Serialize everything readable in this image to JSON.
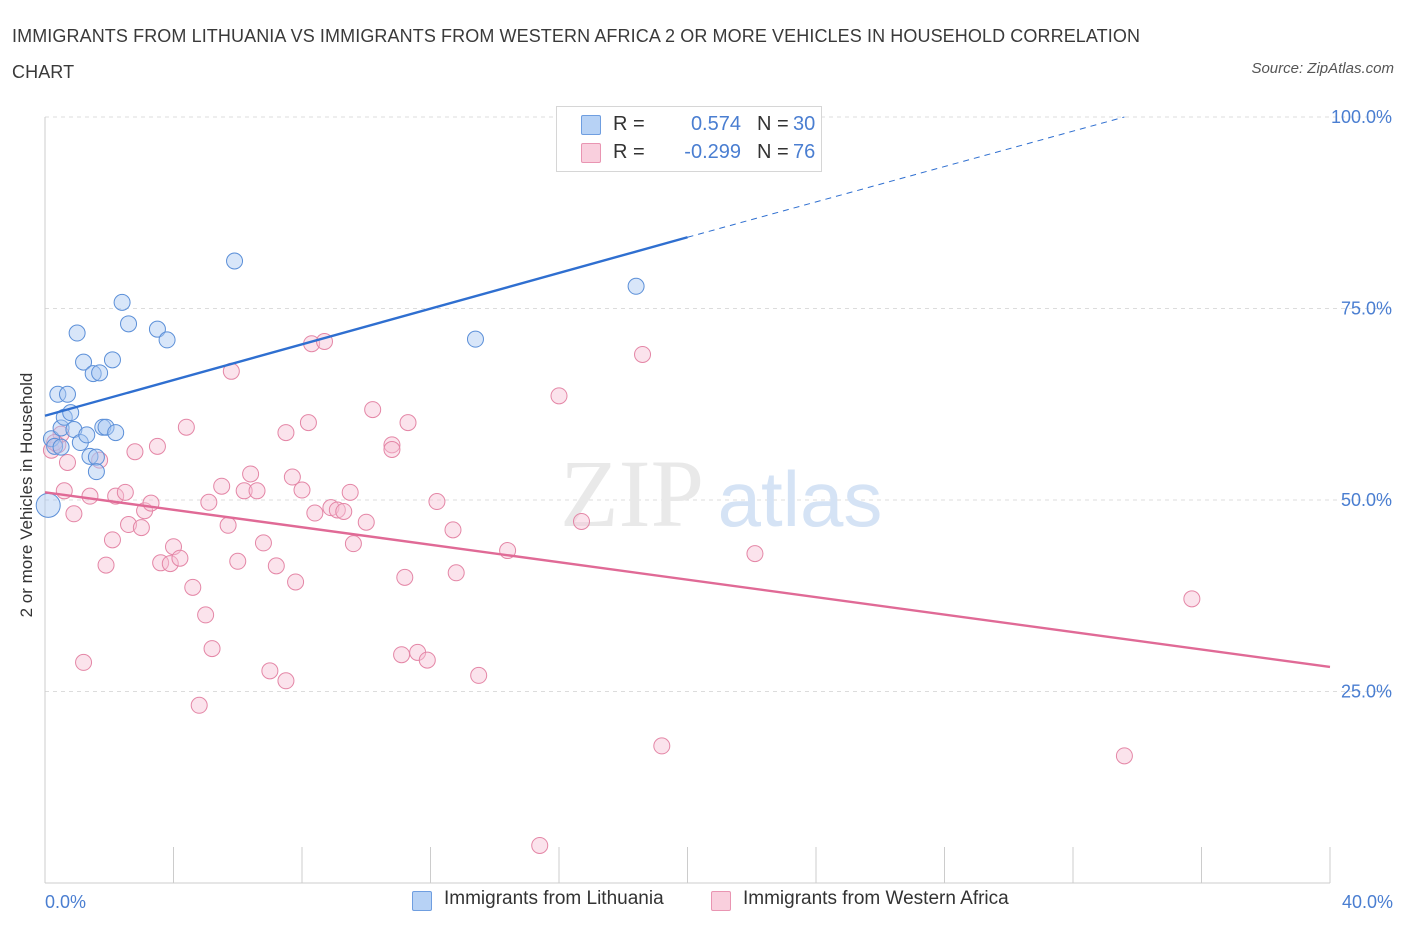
{
  "header": {
    "title": "IMMIGRANTS FROM LITHUANIA VS IMMIGRANTS FROM WESTERN AFRICA 2 OR MORE VEHICLES IN HOUSEHOLD CORRELATION CHART",
    "source": "Source: ZipAtlas.com"
  },
  "watermark": {
    "zip": "ZIP",
    "atlas": "atlas"
  },
  "stats_legend": {
    "rows": [
      {
        "r_label": "R =",
        "r_value": "0.574",
        "n_label": "N =",
        "n_value": "30"
      },
      {
        "r_label": "R =",
        "r_value": "-0.299",
        "n_label": "N =",
        "n_value": "76"
      }
    ]
  },
  "chart_data": {
    "type": "scatter",
    "title": "IMMIGRANTS FROM LITHUANIA VS IMMIGRANTS FROM WESTERN AFRICA 2 OR MORE VEHICLES IN HOUSEHOLD CORRELATION CHART",
    "xlabel": "",
    "ylabel": "2 or more Vehicles in Household",
    "xlim": [
      0,
      40
    ],
    "ylim": [
      0,
      100
    ],
    "x_tick_labels": [
      "0.0%",
      "40.0%"
    ],
    "y_tick_labels": [
      "100.0%",
      "75.0%",
      "50.0%",
      "25.0%"
    ],
    "y_ticks": [
      100,
      75,
      50,
      25
    ],
    "grid": true,
    "legend_position": "bottom-center",
    "series": [
      {
        "name": "Immigrants from Lithuania",
        "color": "#a9c8f2",
        "stroke": "#5b8fd8",
        "trend": {
          "x": [
            0,
            20,
            33.6
          ],
          "y": [
            61,
            84.3,
            100
          ],
          "solid_until": 20,
          "color": "#2f6fd0"
        },
        "points": [
          {
            "x": 0.1,
            "y": 49.3,
            "big": true
          },
          {
            "x": 0.2,
            "y": 58.0
          },
          {
            "x": 0.3,
            "y": 57.0
          },
          {
            "x": 0.4,
            "y": 63.8
          },
          {
            "x": 0.5,
            "y": 59.4
          },
          {
            "x": 0.6,
            "y": 60.8
          },
          {
            "x": 0.7,
            "y": 63.8
          },
          {
            "x": 0.8,
            "y": 61.4
          },
          {
            "x": 0.9,
            "y": 59.2
          },
          {
            "x": 1.0,
            "y": 71.8
          },
          {
            "x": 1.1,
            "y": 57.5
          },
          {
            "x": 1.2,
            "y": 68.0
          },
          {
            "x": 1.3,
            "y": 58.5
          },
          {
            "x": 1.4,
            "y": 55.7
          },
          {
            "x": 1.5,
            "y": 66.5
          },
          {
            "x": 1.6,
            "y": 55.6
          },
          {
            "x": 1.7,
            "y": 66.6
          },
          {
            "x": 1.6,
            "y": 53.7
          },
          {
            "x": 1.8,
            "y": 59.5
          },
          {
            "x": 1.9,
            "y": 59.5
          },
          {
            "x": 2.1,
            "y": 68.3
          },
          {
            "x": 2.2,
            "y": 58.8
          },
          {
            "x": 2.4,
            "y": 75.8
          },
          {
            "x": 2.6,
            "y": 73.0
          },
          {
            "x": 3.5,
            "y": 72.3
          },
          {
            "x": 3.8,
            "y": 70.9
          },
          {
            "x": 5.9,
            "y": 81.2
          },
          {
            "x": 13.4,
            "y": 71.0
          },
          {
            "x": 18.4,
            "y": 77.9
          },
          {
            "x": 0.5,
            "y": 56.9
          }
        ]
      },
      {
        "name": "Immigrants from Western Africa",
        "color": "#f7c2d4",
        "stroke": "#e486a6",
        "trend": {
          "x": [
            0,
            40
          ],
          "y": [
            51,
            28.2
          ],
          "color": "#e06a96"
        },
        "points": [
          {
            "x": 0.2,
            "y": 56.5
          },
          {
            "x": 0.4,
            "y": 57.2
          },
          {
            "x": 0.5,
            "y": 58.6
          },
          {
            "x": 0.6,
            "y": 51.2
          },
          {
            "x": 0.7,
            "y": 54.9
          },
          {
            "x": 0.9,
            "y": 48.2
          },
          {
            "x": 1.2,
            "y": 28.8
          },
          {
            "x": 1.4,
            "y": 50.5
          },
          {
            "x": 1.7,
            "y": 55.2
          },
          {
            "x": 1.9,
            "y": 41.5
          },
          {
            "x": 2.1,
            "y": 44.8
          },
          {
            "x": 2.2,
            "y": 50.5
          },
          {
            "x": 2.5,
            "y": 51.0
          },
          {
            "x": 2.6,
            "y": 46.8
          },
          {
            "x": 2.8,
            "y": 56.3
          },
          {
            "x": 3.0,
            "y": 46.4
          },
          {
            "x": 3.1,
            "y": 48.6
          },
          {
            "x": 3.3,
            "y": 49.6
          },
          {
            "x": 3.5,
            "y": 57.0
          },
          {
            "x": 3.6,
            "y": 41.8
          },
          {
            "x": 3.9,
            "y": 41.7
          },
          {
            "x": 4.0,
            "y": 43.9
          },
          {
            "x": 4.2,
            "y": 42.4
          },
          {
            "x": 4.4,
            "y": 59.5
          },
          {
            "x": 4.6,
            "y": 38.6
          },
          {
            "x": 5.0,
            "y": 35.0
          },
          {
            "x": 4.8,
            "y": 23.2
          },
          {
            "x": 5.1,
            "y": 49.7
          },
          {
            "x": 5.2,
            "y": 30.6
          },
          {
            "x": 5.5,
            "y": 51.8
          },
          {
            "x": 5.7,
            "y": 46.7
          },
          {
            "x": 5.8,
            "y": 66.8
          },
          {
            "x": 6.0,
            "y": 42.0
          },
          {
            "x": 6.2,
            "y": 51.2
          },
          {
            "x": 6.4,
            "y": 53.4
          },
          {
            "x": 6.6,
            "y": 51.2
          },
          {
            "x": 6.8,
            "y": 44.4
          },
          {
            "x": 7.0,
            "y": 27.7
          },
          {
            "x": 7.2,
            "y": 41.4
          },
          {
            "x": 7.5,
            "y": 26.4
          },
          {
            "x": 7.5,
            "y": 58.8
          },
          {
            "x": 7.7,
            "y": 53.0
          },
          {
            "x": 7.8,
            "y": 39.3
          },
          {
            "x": 8.0,
            "y": 51.3
          },
          {
            "x": 8.2,
            "y": 60.1
          },
          {
            "x": 8.3,
            "y": 70.4
          },
          {
            "x": 8.4,
            "y": 48.3
          },
          {
            "x": 8.7,
            "y": 70.7
          },
          {
            "x": 8.9,
            "y": 49.0
          },
          {
            "x": 9.1,
            "y": 48.7
          },
          {
            "x": 9.3,
            "y": 48.5
          },
          {
            "x": 9.5,
            "y": 51.0
          },
          {
            "x": 9.6,
            "y": 44.3
          },
          {
            "x": 10.0,
            "y": 47.1
          },
          {
            "x": 10.2,
            "y": 61.8
          },
          {
            "x": 10.8,
            "y": 57.2
          },
          {
            "x": 10.8,
            "y": 56.6
          },
          {
            "x": 11.1,
            "y": 29.8
          },
          {
            "x": 11.2,
            "y": 39.9
          },
          {
            "x": 11.3,
            "y": 60.1
          },
          {
            "x": 11.6,
            "y": 30.1
          },
          {
            "x": 11.9,
            "y": 29.1
          },
          {
            "x": 12.2,
            "y": 49.8
          },
          {
            "x": 12.7,
            "y": 46.1
          },
          {
            "x": 12.8,
            "y": 40.5
          },
          {
            "x": 13.5,
            "y": 27.1
          },
          {
            "x": 14.4,
            "y": 43.4
          },
          {
            "x": 15.4,
            "y": 4.9
          },
          {
            "x": 16.0,
            "y": 63.6
          },
          {
            "x": 16.7,
            "y": 47.2
          },
          {
            "x": 18.6,
            "y": 69.0
          },
          {
            "x": 19.2,
            "y": 17.9
          },
          {
            "x": 22.1,
            "y": 43.0
          },
          {
            "x": 33.6,
            "y": 16.6
          },
          {
            "x": 35.7,
            "y": 37.1
          },
          {
            "x": 0.3,
            "y": 57.5
          }
        ]
      }
    ]
  },
  "bottom_legend": {
    "items": [
      {
        "label": "Immigrants from Lithuania"
      },
      {
        "label": "Immigrants from Western Africa"
      }
    ]
  }
}
